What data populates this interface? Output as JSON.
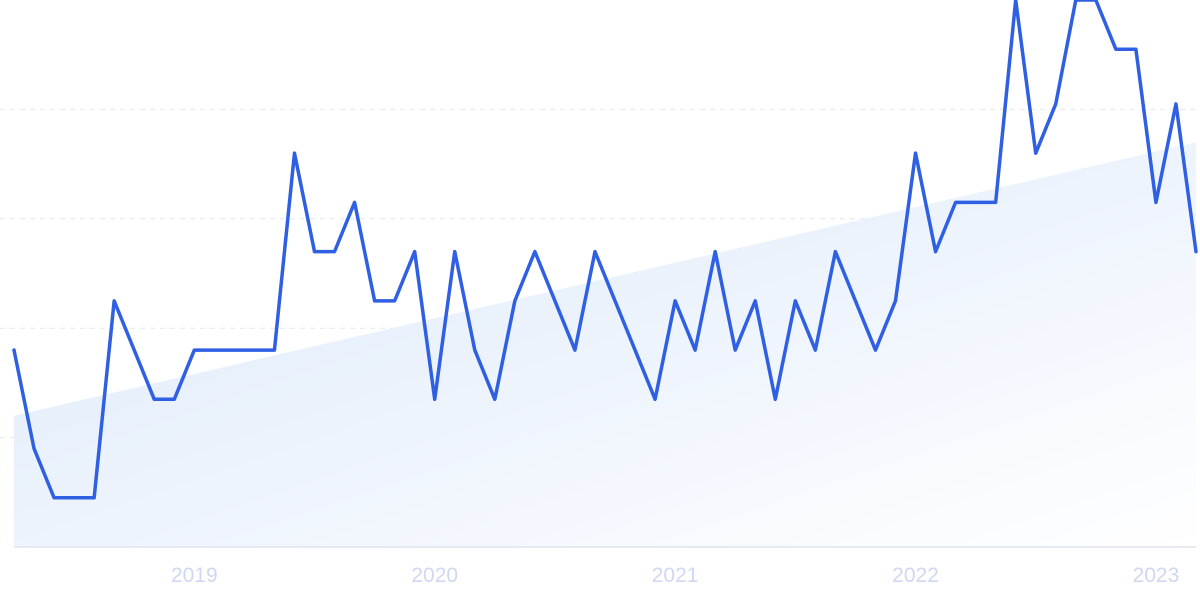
{
  "chart_data": {
    "type": "line",
    "title": "",
    "xlabel": "",
    "ylabel": "",
    "grid": true,
    "legend": "none",
    "colors": {
      "line": "#2f5fe3",
      "trend_fill_start": "#dbe8fa",
      "trend_fill_end": "#ffffff",
      "grid": "#e3e6ec",
      "tick_text": "#cfd8f2"
    },
    "x_tick_labels": [
      "2019",
      "2020",
      "2021",
      "2022",
      "2023"
    ],
    "xlim": [
      "2018-04",
      "2023-03"
    ],
    "ylim": [
      0,
      100
    ],
    "series": [
      {
        "type": "line",
        "x": [
          "2018-04",
          "2018-05",
          "2018-06",
          "2018-07",
          "2018-08",
          "2018-09",
          "2018-10",
          "2018-11",
          "2018-12",
          "2019-01",
          "2019-02",
          "2019-03",
          "2019-04",
          "2019-05",
          "2019-06",
          "2019-07",
          "2019-08",
          "2019-09",
          "2019-10",
          "2019-11",
          "2019-12",
          "2020-01",
          "2020-02",
          "2020-03",
          "2020-04",
          "2020-05",
          "2020-06",
          "2020-07",
          "2020-08",
          "2020-09",
          "2020-10",
          "2020-11",
          "2020-12",
          "2021-01",
          "2021-02",
          "2021-03",
          "2021-04",
          "2021-05",
          "2021-06",
          "2021-07",
          "2021-08",
          "2021-09",
          "2021-10",
          "2021-11",
          "2021-12",
          "2022-01",
          "2022-02",
          "2022-03",
          "2022-04",
          "2022-05",
          "2022-06",
          "2022-07",
          "2022-08",
          "2022-09",
          "2022-10",
          "2022-11",
          "2022-12",
          "2023-01",
          "2023-02",
          "2023-03"
        ],
        "values": [
          36,
          18,
          9,
          9,
          9,
          45,
          36,
          27,
          27,
          36,
          36,
          36,
          36,
          36,
          72,
          54,
          54,
          63,
          45,
          45,
          54,
          27,
          54,
          36,
          27,
          45,
          54,
          45,
          36,
          54,
          45,
          36,
          27,
          45,
          36,
          54,
          36,
          45,
          27,
          45,
          36,
          54,
          45,
          36,
          45,
          72,
          54,
          63,
          63,
          63,
          100,
          72,
          81,
          100,
          100,
          91,
          91,
          63,
          81,
          54
        ]
      },
      {
        "type": "area",
        "x": [
          "2018-04",
          "2023-03"
        ],
        "values": [
          24,
          74
        ]
      }
    ]
  }
}
